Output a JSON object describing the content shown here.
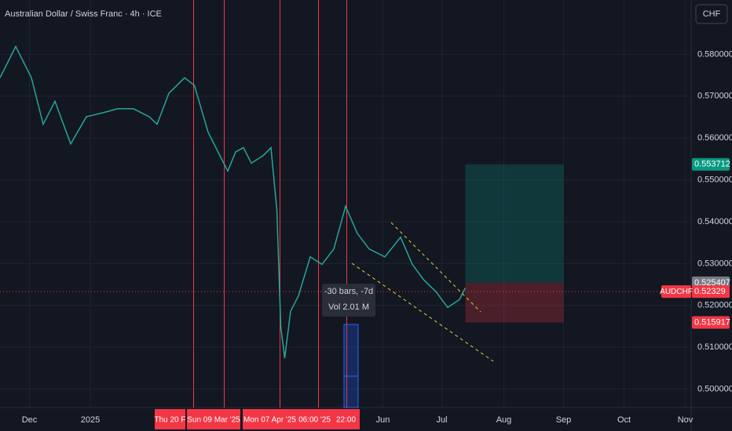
{
  "title": "Australian Dollar / Swiss Franc · 4h · ICE",
  "currency_button": "CHF",
  "chart_data": {
    "type": "line",
    "symbol": "AUDCHF",
    "color": "#26a69a",
    "grid": true,
    "x": [
      -15,
      -7,
      1,
      7,
      13,
      21,
      29,
      37,
      45,
      53,
      61,
      65,
      71,
      79,
      84,
      91,
      97,
      101,
      105,
      109,
      113,
      119,
      123,
      126,
      128,
      130,
      133,
      137,
      143,
      149,
      155,
      161,
      167,
      173,
      181,
      189,
      195,
      201,
      207,
      213,
      219,
      222
    ],
    "series": [
      {
        "name": "AUDCHF",
        "color": "#26a69a",
        "values": [
          0.5744,
          0.5819,
          0.5744,
          0.5633,
          0.5688,
          0.5586,
          0.5651,
          0.566,
          0.567,
          0.567,
          0.5651,
          0.5633,
          0.5707,
          0.5744,
          0.5726,
          0.5614,
          0.5558,
          0.5521,
          0.5567,
          0.5577,
          0.554,
          0.5558,
          0.5577,
          0.5428,
          0.5149,
          0.5074,
          0.5186,
          0.5223,
          0.5316,
          0.5298,
          0.5335,
          0.5437,
          0.5372,
          0.5335,
          0.5316,
          0.5363,
          0.5298,
          0.526,
          0.5233,
          0.5195,
          0.5214,
          0.5242
        ]
      }
    ],
    "xlim": [
      -15,
      337
    ],
    "xticks": [
      {
        "value": 0,
        "label": "Dec"
      },
      {
        "value": 31,
        "label": "2025"
      },
      {
        "value": 180,
        "label": "Jun"
      },
      {
        "value": 210,
        "label": "Jul"
      },
      {
        "value": 241.6,
        "label": "Aug"
      },
      {
        "value": 272,
        "label": "Sep"
      },
      {
        "value": 302.8,
        "label": "Oct"
      },
      {
        "value": 334,
        "label": "Nov"
      }
    ],
    "ylim": [
      0.4956,
      0.593
    ],
    "yticks": [
      {
        "value": 0.5,
        "label": "0.500000"
      },
      {
        "value": 0.51,
        "label": "0.510000"
      },
      {
        "value": 0.52,
        "label": "0.520000"
      },
      {
        "value": 0.53,
        "label": "0.530000"
      },
      {
        "value": 0.54,
        "label": "0.540000"
      },
      {
        "value": 0.55,
        "label": "0.550000"
      },
      {
        "value": 0.56,
        "label": "0.560000"
      },
      {
        "value": 0.57,
        "label": "0.570000"
      },
      {
        "value": 0.58,
        "label": "0.580000"
      }
    ],
    "position": {
      "start": 222,
      "end": 272,
      "target": 0.553712,
      "entry": 0.525407,
      "stop": 0.515917
    },
    "last_price": 0.52329,
    "markers": [
      {
        "x": 83.6,
        "label": "Thu 20 F"
      },
      {
        "x": 99.2,
        "label": "Sun 09 Mar '25"
      },
      {
        "x": 127.6,
        "label": "Mon 07 Apr '25"
      },
      {
        "x": 147.2,
        "label": "06:00 '25"
      },
      {
        "x": 161.6,
        "label": "22:00"
      }
    ],
    "tooltip": [
      "-30 bars, -7d",
      "Vol 2.01 M"
    ]
  }
}
